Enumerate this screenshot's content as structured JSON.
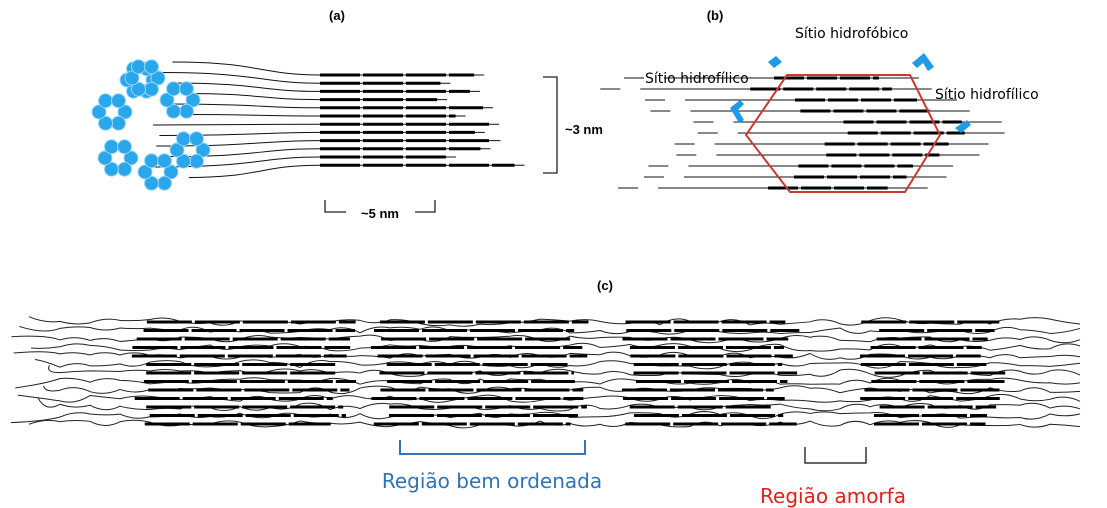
{
  "panels": [
    {
      "label": "(a)",
      "annotations": [
        "~3 nm",
        "~5 nm"
      ]
    },
    {
      "label": "(b)",
      "annotations": [
        "Sítio hidrofóbico",
        "Sítio hidrofílico",
        "Sítio hidrofílico"
      ]
    },
    {
      "label": "(c)",
      "annotations": [
        "Região bem ordenada",
        "Região amorfa"
      ]
    }
  ]
}
